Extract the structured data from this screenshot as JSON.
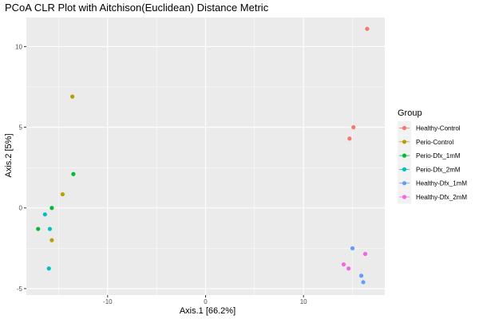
{
  "chart_data": {
    "type": "scatter",
    "title": "PCoA CLR Plot with Aitchison(Euclidean) Distance Metric",
    "xlabel": "Axis.1   [66.2%]",
    "ylabel": "Axis.2   [5%]",
    "xlim": [
      -18.3,
      18.3
    ],
    "ylim": [
      -5.4,
      11.8
    ],
    "xticks": [
      -10,
      0,
      10
    ],
    "yticks": [
      -5,
      0,
      5,
      10
    ],
    "x_tick_labels": [
      "-10",
      "0",
      "10"
    ],
    "y_tick_labels": [
      "-5",
      "0",
      "5",
      "10"
    ],
    "grid": true,
    "background": "#ebebeb",
    "legend": {
      "title": "Group",
      "position": "right"
    },
    "series": [
      {
        "name": "Healthy-Control",
        "color": "#F8766D",
        "points": [
          [
            16.5,
            11.1
          ],
          [
            15.1,
            5.0
          ],
          [
            14.7,
            4.3
          ]
        ]
      },
      {
        "name": "Perio-Control",
        "color": "#B79F00",
        "points": [
          [
            -13.6,
            6.9
          ],
          [
            -14.6,
            0.85
          ],
          [
            -15.7,
            -2.0
          ]
        ]
      },
      {
        "name": "Perio-Dfx_1mM",
        "color": "#00BA38",
        "points": [
          [
            -13.5,
            2.1
          ],
          [
            -15.7,
            0.0
          ],
          [
            -17.1,
            -1.3
          ]
        ]
      },
      {
        "name": "Perio-Dfx_2mM",
        "color": "#00BFC4",
        "points": [
          [
            -16.4,
            -0.4
          ],
          [
            -15.9,
            -1.3
          ],
          [
            -16.0,
            -3.75
          ]
        ]
      },
      {
        "name": "Healthy-Dfx_1mM",
        "color": "#619CFF",
        "points": [
          [
            15.0,
            -2.5
          ],
          [
            15.9,
            -4.2
          ],
          [
            16.1,
            -4.6
          ]
        ]
      },
      {
        "name": "Healthy-Dfx_2mM",
        "color": "#F564E3",
        "points": [
          [
            16.3,
            -2.85
          ],
          [
            14.1,
            -3.5
          ],
          [
            14.6,
            -3.75
          ]
        ]
      }
    ]
  }
}
